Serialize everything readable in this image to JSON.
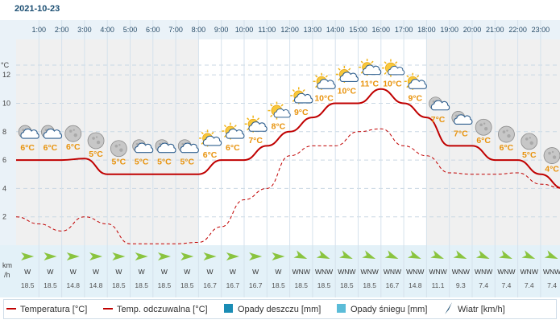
{
  "date": "2021-10-23",
  "hours": [
    "1:00",
    "2:00",
    "3:00",
    "4:00",
    "5:00",
    "6:00",
    "7:00",
    "8:00",
    "9:00",
    "10:00",
    "11:00",
    "12:00",
    "13:00",
    "14:00",
    "15:00",
    "16:00",
    "17:00",
    "18:00",
    "19:00",
    "20:00",
    "21:00",
    "22:00",
    "23:00"
  ],
  "y_axis": {
    "unit_label": "°C",
    "ticks": [
      2,
      4,
      6,
      8,
      10,
      12
    ]
  },
  "wind_axis_label": [
    "km",
    "/h"
  ],
  "chart_data": {
    "type": "line",
    "title": "",
    "xlabel": "",
    "ylabel": "°C",
    "ylim": [
      0,
      14.5
    ],
    "x": [
      0,
      1,
      2,
      3,
      4,
      5,
      6,
      7,
      8,
      9,
      10,
      11,
      12,
      13,
      14,
      15,
      16,
      17,
      18,
      19,
      20,
      21,
      22,
      23,
      24
    ],
    "series": [
      {
        "name": "Temperatura [°C]",
        "style": "solid",
        "color": "#c00000",
        "values": [
          6,
          6,
          6,
          6.1,
          5,
          5,
          5,
          5,
          5,
          6,
          6,
          7,
          8,
          9,
          10,
          10,
          11,
          10,
          9,
          7,
          7,
          6,
          6,
          5,
          4
        ]
      },
      {
        "name": "Temp. odczuwalna [°C]",
        "style": "dashed",
        "color": "#c00000",
        "values": [
          2,
          1.5,
          1,
          2,
          1.5,
          0.1,
          0.1,
          0.1,
          0.2,
          1.3,
          3.2,
          4,
          6.3,
          7,
          7,
          8,
          8.2,
          7,
          6.3,
          5.1,
          5,
          5,
          5.1,
          4.3,
          4
        ]
      }
    ],
    "hour_temps": [
      "6°C",
      "6°C",
      "6°C",
      "5°C",
      "5°C",
      "5°C",
      "5°C",
      "5°C",
      "6°C",
      "6°C",
      "7°C",
      "8°C",
      "9°C",
      "10°C",
      "10°C",
      "11°C",
      "10°C",
      "9°C",
      "7°C",
      "7°C",
      "6°C",
      "6°C",
      "5°C",
      "4°C"
    ],
    "hour_icons": [
      "night-partly-cloudy-icon",
      "night-partly-cloudy-icon",
      "moon-icon",
      "moon-icon",
      "moon-icon",
      "night-partly-cloudy-icon",
      "night-partly-cloudy-icon",
      "night-partly-cloudy-icon",
      "sun-cloud-icon",
      "sun-cloud-icon",
      "sun-cloud-icon",
      "sun-icon",
      "sun-cloud-icon",
      "sun-cloud-icon",
      "sun-cloud-icon",
      "sun-cloud-icon",
      "sun-icon",
      "sun-cloud-icon",
      "night-partly-cloudy-icon",
      "night-partly-cloudy-icon",
      "moon-icon",
      "moon-icon",
      "moon-icon",
      "moon-icon"
    ],
    "wind_direction": [
      "W",
      "W",
      "W",
      "W",
      "W",
      "W",
      "W",
      "W",
      "W",
      "W",
      "W",
      "W",
      "WNW",
      "WNW",
      "WNW",
      "WNW",
      "WNW",
      "WNW",
      "WNW",
      "WNW",
      "WNW",
      "WNW",
      "WNW",
      "WNW"
    ],
    "wind_speed": [
      "18.5",
      "18.5",
      "14.8",
      "14.8",
      "18.5",
      "18.5",
      "18.5",
      "18.5",
      "16.7",
      "16.7",
      "16.7",
      "18.5",
      "18.5",
      "18.5",
      "18.5",
      "18.5",
      "16.7",
      "14.8",
      "11.1",
      "9.3",
      "7.4",
      "7.4",
      "7.4",
      "7.4"
    ]
  },
  "legend": [
    {
      "label": "Temperatura [°C]",
      "kind": "line",
      "color": "#c00000"
    },
    {
      "label": "Temp. odczuwalna [°C]",
      "kind": "line",
      "color": "#c00000"
    },
    {
      "label": "Opady deszczu [mm]",
      "kind": "box",
      "color": "#1a8cb4"
    },
    {
      "label": "Opady śniegu [mm]",
      "kind": "box",
      "color": "#5bbcd8"
    },
    {
      "label": "Wiatr [km/h]",
      "kind": "arrow",
      "color": "#1c4f73"
    }
  ],
  "colors": {
    "accent": "#1c4f73",
    "hour_band": "#eaf2f8",
    "night_shade": "#f0f0f0",
    "wind_band": "#e3f1f8",
    "wind_arrow": "#8ac43f"
  }
}
